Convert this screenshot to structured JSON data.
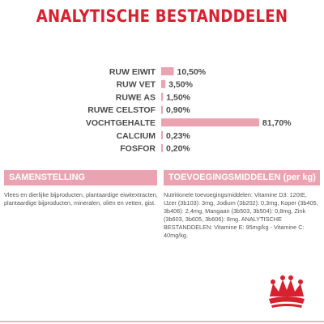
{
  "page": {
    "title": "ANALYTISCHE BESTANDDELEN",
    "composition": {
      "header": "SAMENSTELLING",
      "text": "Vlees en dierlijke bijproducten, plantaardige eiwitextracten, plantaardige bijproducten, mineralen, oliën en vetten, gist."
    },
    "additives": {
      "header": "TOEVOEGINGSMIDDELEN (per kg)",
      "text": "Nutritionele toevoegingsmiddelen: Vitamine D3: 120IE, IJzer (3b103): 3mg, Jodium (3b202): 0,3mg, Koper (3b405, 3b406): 2,4mg, Mangaan (3b503, 3b504): 0,8mg, Zink (3b603, 3b605, 3b606): 8mg. ANALYTISCHE BESTANDDELEN: Vitamine E: 95mg/kg - Vitamine C: 40mg/kg."
    },
    "colors": {
      "title": "#d8202f",
      "bar": "#eba3b2",
      "header_band": "#eba3b2",
      "logo": "#d8202f"
    },
    "logo_icon": "royal-canin-crown-icon"
  },
  "chart_data": {
    "type": "bar",
    "orientation": "horizontal",
    "title": "ANALYTISCHE BESTANDDELEN",
    "categories": [
      "RUW EIWIT",
      "RUW VET",
      "RUWE AS",
      "RUWE CELSTOF",
      "VOCHTGEHALTE",
      "CALCIUM",
      "FOSFOR"
    ],
    "values": [
      10.5,
      3.5,
      1.5,
      0.9,
      81.7,
      0.23,
      0.2
    ],
    "value_labels": [
      "10,50%",
      "3,50%",
      "1,50%",
      "0,90%",
      "81,70%",
      "0,23%",
      "0,20%"
    ],
    "unit": "%",
    "xlim": [
      0,
      100
    ],
    "grid": false,
    "legend": "none"
  }
}
